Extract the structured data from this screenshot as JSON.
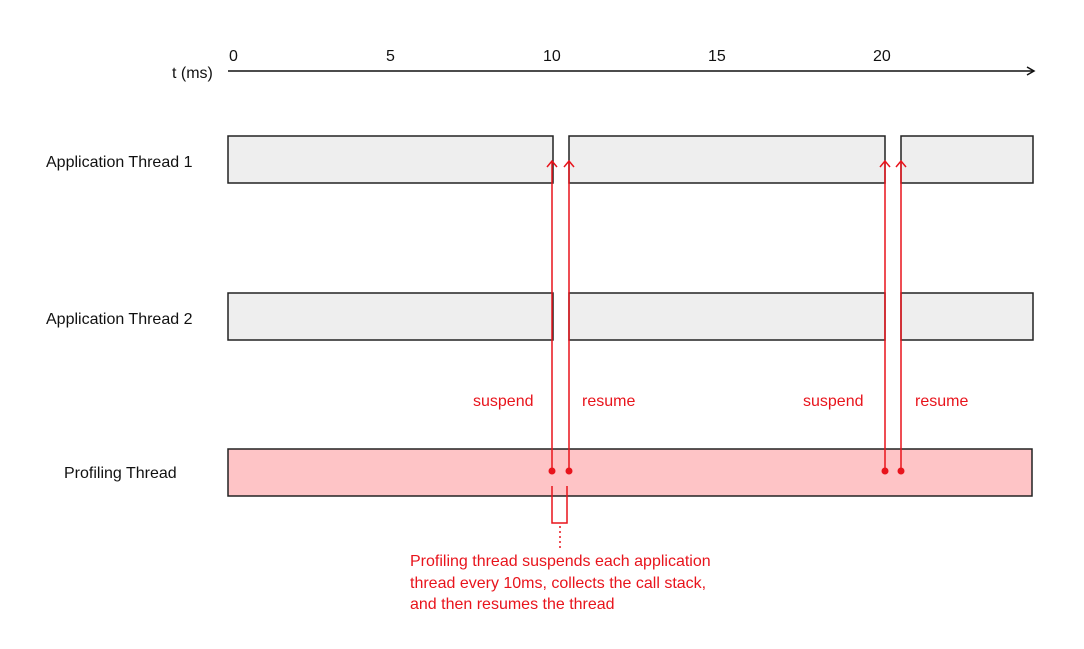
{
  "axis": {
    "label": "t (ms)",
    "ticks": [
      "0",
      "5",
      "10",
      "15",
      "20"
    ]
  },
  "threads": [
    {
      "label": "Application Thread 1"
    },
    {
      "label": "Application Thread 2"
    },
    {
      "label": "Profiling Thread"
    }
  ],
  "events": [
    {
      "label": "suspend",
      "t_ms": 10
    },
    {
      "label": "resume",
      "t_ms": 10.5
    },
    {
      "label": "suspend",
      "t_ms": 20
    },
    {
      "label": "resume",
      "t_ms": 20.5
    }
  ],
  "annotation": {
    "lines": [
      "Profiling thread suspends each application",
      "thread every 10ms, collects the call stack,",
      "and then resumes the thread"
    ]
  },
  "colors": {
    "accent": "#e8141c",
    "app_fill": "#eeeeee",
    "profiling_fill": "#fec4c6",
    "stroke": "#222222"
  }
}
